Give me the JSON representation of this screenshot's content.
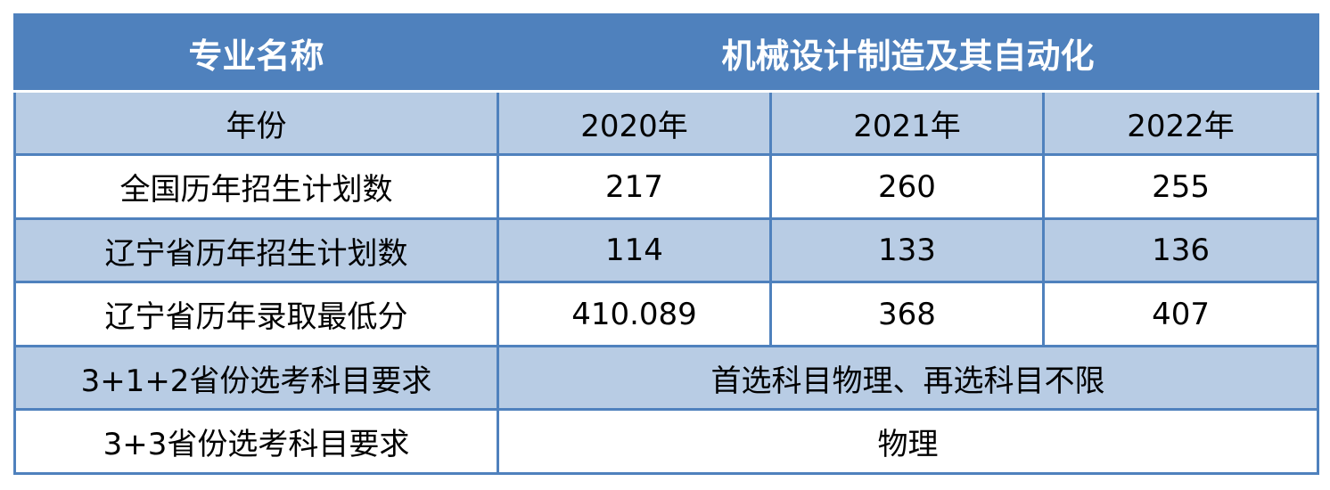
{
  "header": {
    "label": "专业名称",
    "major": "机械设计制造及其自动化"
  },
  "table": {
    "columns": [
      "年份",
      "2020年",
      "2021年",
      "2022年"
    ],
    "rows": [
      [
        "全国历年招生计划数",
        "217",
        "260",
        "255"
      ],
      [
        "辽宁省历年招生计划数",
        "114",
        "133",
        "136"
      ],
      [
        "辽宁省历年录取最低分",
        "410.089",
        "368",
        "407"
      ]
    ],
    "requirements": [
      [
        "3+1+2省份选考科目要求",
        "首选科目物理、再选科目不限"
      ],
      [
        "3+3省份选考科目要求",
        "物理"
      ]
    ]
  }
}
